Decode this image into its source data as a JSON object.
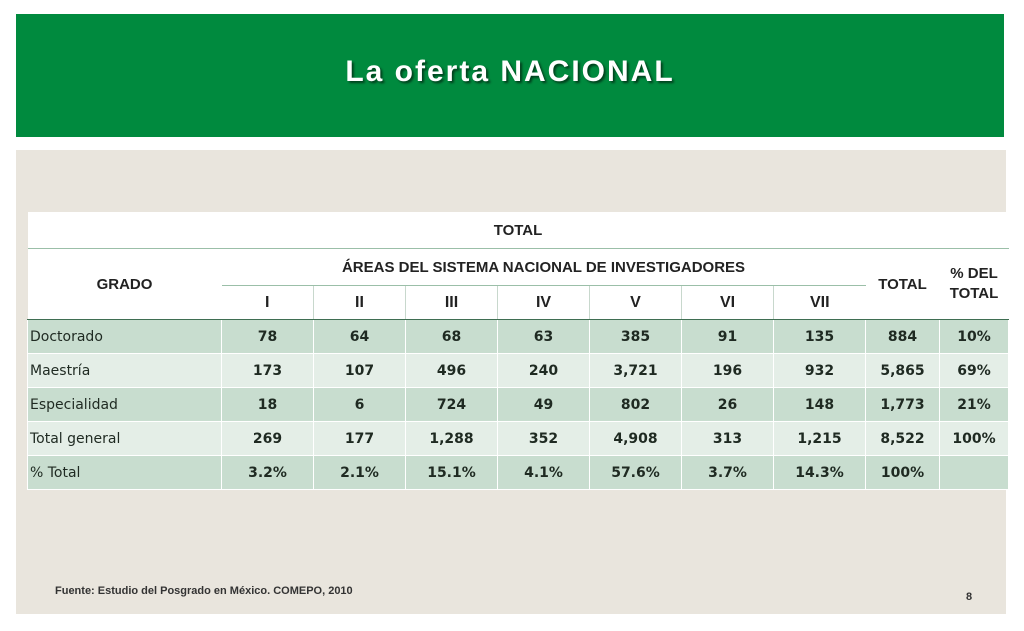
{
  "slide": {
    "title": "La oferta NACIONAL",
    "source": "Fuente:  Estudio del Posgrado en México. COMEPO, 2010",
    "page_number": "8",
    "colors": {
      "header_green": "#008a3e",
      "content_bg": "#e9e5dd",
      "row_dark": "#c8ddcf",
      "row_light": "#e4eee7"
    }
  },
  "table": {
    "top_header": "TOTAL",
    "grado_header": "GRADO",
    "areas_header": "ÁREAS DEL SISTEMA NACIONAL DE INVESTIGADORES",
    "total_header": "TOTAL",
    "pct_header": "% DEL TOTAL",
    "areas": [
      "I",
      "II",
      "III",
      "IV",
      "V",
      "VI",
      "VII"
    ],
    "rows": [
      {
        "label": "Doctorado",
        "cells": [
          "78",
          "64",
          "68",
          "63",
          "385",
          "91",
          "135",
          "884",
          "10%"
        ]
      },
      {
        "label": "Maestría",
        "cells": [
          "173",
          "107",
          "496",
          "240",
          "3,721",
          "196",
          "932",
          "5,865",
          "69%"
        ]
      },
      {
        "label": "Especialidad",
        "cells": [
          "18",
          "6",
          "724",
          "49",
          "802",
          "26",
          "148",
          "1,773",
          "21%"
        ]
      },
      {
        "label": "Total general",
        "cells": [
          "269",
          "177",
          "1,288",
          "352",
          "4,908",
          "313",
          "1,215",
          "8,522",
          "100%"
        ]
      },
      {
        "label": "% Total",
        "cells": [
          "3.2%",
          "2.1%",
          "15.1%",
          "4.1%",
          "57.6%",
          "3.7%",
          "14.3%",
          "100%",
          ""
        ]
      }
    ]
  }
}
